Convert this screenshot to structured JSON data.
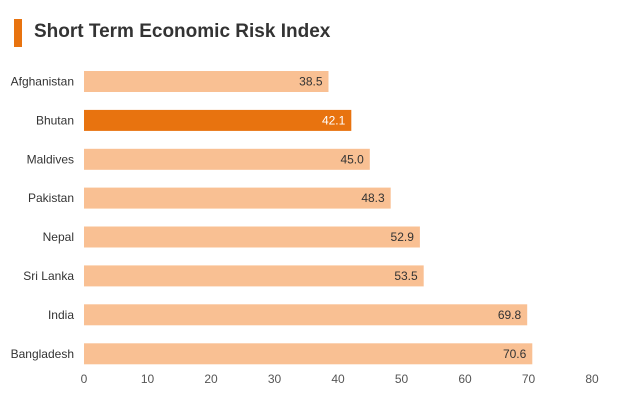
{
  "chart_data": {
    "type": "bar",
    "orientation": "horizontal",
    "title": "Short Term Economic Risk Index",
    "categories": [
      "Afghanistan",
      "Bhutan",
      "Maldives",
      "Pakistan",
      "Nepal",
      "Sri Lanka",
      "India",
      "Bangladesh"
    ],
    "values": [
      38.5,
      42.1,
      45.0,
      48.3,
      52.9,
      53.5,
      69.8,
      70.6
    ],
    "value_labels": [
      "38.5",
      "42.1",
      "45.0",
      "48.3",
      "52.9",
      "53.5",
      "69.8",
      "70.6"
    ],
    "highlight_category": "Bhutan",
    "xlim": [
      0,
      80
    ],
    "xticks": [
      0,
      10,
      20,
      30,
      40,
      50,
      60,
      70,
      80
    ],
    "xlabel": "",
    "ylabel": "",
    "grid": false,
    "legend": "none"
  },
  "colors": {
    "bar": "#f9c093",
    "highlight": "#e8730f",
    "title_accent": "#e8730f",
    "label_dark": "#333333",
    "label_light": "#ffffff"
  }
}
